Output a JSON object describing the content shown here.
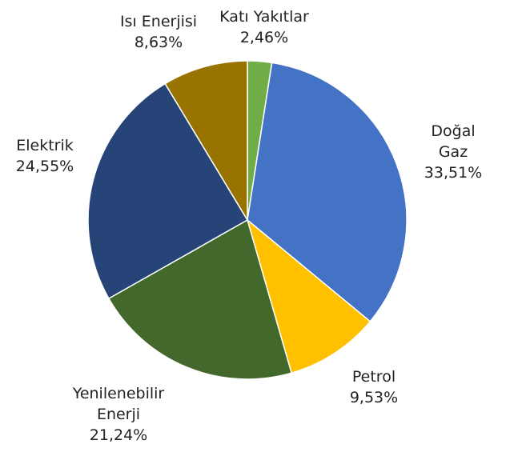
{
  "chart_data": {
    "type": "pie",
    "categories": [
      "Katı Yakıtlar",
      "Doğal Gaz",
      "Petrol",
      "Yenilenebilir Enerji",
      "Elektrik",
      "Isı Enerjisi"
    ],
    "values": [
      2.46,
      33.51,
      9.53,
      21.24,
      24.55,
      8.63
    ],
    "value_labels": [
      "2,46%",
      "33,51%",
      "9,53%",
      "21,24%",
      "24,55%",
      "8,63%"
    ],
    "colors": [
      "#70ad47",
      "#4472c4",
      "#ffc000",
      "#43682b",
      "#264478",
      "#997300"
    ]
  }
}
